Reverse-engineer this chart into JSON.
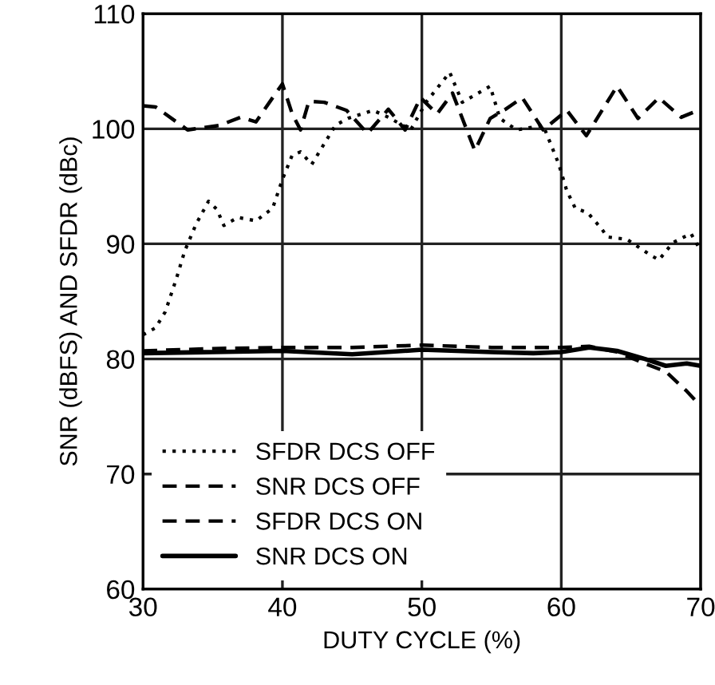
{
  "chart_data": {
    "type": "line",
    "xlabel": "DUTY CYCLE (%)",
    "ylabel": "SNR (dBFS) AND SFDR (dBc)",
    "xlim": [
      30,
      70
    ],
    "ylim": [
      60,
      110
    ],
    "xticks": [
      30,
      40,
      50,
      60,
      70
    ],
    "yticks": [
      60,
      70,
      80,
      90,
      100,
      110
    ],
    "grid": true,
    "legend": "bottom left",
    "marker": "none",
    "series": [
      {
        "name": "SFDR DCS OFF",
        "color": "#000000",
        "line_style": "dotted",
        "x": [
          30,
          30.9,
          31.6,
          32.4,
          33,
          33.8,
          34.7,
          35.3,
          35.8,
          36.8,
          38.1,
          39.3,
          40,
          40.7,
          41.3,
          42.1,
          43,
          43.8,
          44.7,
          46.5,
          47.6,
          49.2,
          50.3,
          52,
          52.9,
          54.9,
          55.6,
          56.8,
          58.7,
          59.8,
          60.4,
          61,
          61.9,
          62.9,
          63.3,
          64.7,
          66.3,
          67,
          68,
          69.3,
          70
        ],
        "values": [
          82.1,
          82.7,
          84.1,
          87,
          89.4,
          91.7,
          93.7,
          93,
          91.6,
          92.3,
          92,
          93.1,
          95.6,
          97.7,
          98,
          96.9,
          98.7,
          100.3,
          100.9,
          101.6,
          101,
          99.9,
          102.3,
          104.9,
          102.3,
          103.7,
          100.9,
          99.9,
          100.3,
          97,
          94.6,
          93.1,
          92.7,
          91.3,
          90.6,
          90.4,
          89.1,
          88.6,
          90.1,
          90.9,
          89.4
        ]
      },
      {
        "name": "SNR DCS OFF",
        "color": "#000000",
        "line_style": "dashed",
        "x": [
          30,
          35,
          40,
          45,
          50,
          55,
          60,
          62,
          64,
          66,
          67.5,
          69,
          70
        ],
        "values": [
          80.7,
          80.9,
          81,
          81,
          81.2,
          81,
          81,
          81.1,
          80.6,
          79.6,
          78.9,
          77.2,
          75.9
        ]
      },
      {
        "name": "SFDR DCS ON",
        "color": "#000000",
        "line_style": "dashed",
        "x": [
          30,
          30.9,
          33.2,
          35.5,
          37,
          38.1,
          39.3,
          40,
          40.7,
          41.3,
          41.9,
          43,
          44.6,
          46.1,
          47.6,
          48.8,
          49.9,
          51.1,
          52.2,
          53.8,
          54.9,
          56,
          57.2,
          58.7,
          60.4,
          61.8,
          64,
          65.5,
          67,
          68.6,
          70
        ],
        "values": [
          102,
          101.9,
          99.9,
          100.3,
          101,
          100.6,
          102.7,
          103.9,
          101.3,
          99.9,
          102.4,
          102.3,
          101.6,
          99.6,
          101.7,
          99.9,
          102.7,
          101.3,
          103.1,
          98.1,
          100.9,
          101.7,
          102.7,
          99.9,
          101.6,
          99.4,
          103.7,
          100.9,
          102.7,
          101,
          101.7
        ]
      },
      {
        "name": "SNR DCS ON",
        "color": "#000000",
        "line_style": "solid",
        "x": [
          30,
          35,
          40,
          45,
          50,
          55,
          58,
          60,
          62,
          64,
          66,
          67.5,
          69,
          70
        ],
        "values": [
          80.5,
          80.6,
          80.7,
          80.4,
          80.8,
          80.6,
          80.5,
          80.6,
          81,
          80.7,
          80,
          79.4,
          79.6,
          79.4
        ]
      }
    ]
  }
}
